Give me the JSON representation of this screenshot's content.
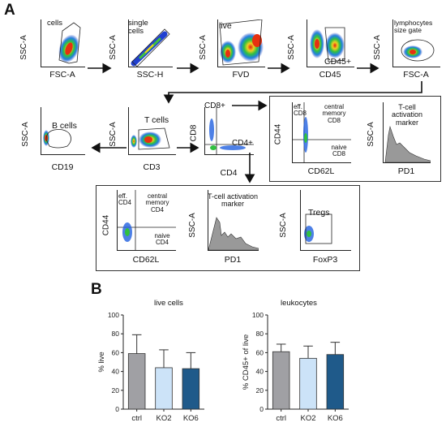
{
  "panel_a": {
    "letter": "A",
    "plots": {
      "cells": {
        "y": "SSC-A",
        "x": "FSC-A",
        "gate": "cells"
      },
      "single": {
        "y": "SSC-A",
        "x": "SSC-H",
        "gate": "single cells"
      },
      "live": {
        "y": "SSC-A",
        "x": "FVD",
        "gate": "live"
      },
      "cd45": {
        "y": "SSC-A",
        "x": "CD45",
        "gate": "CD45+"
      },
      "lymph": {
        "y": "SSC-A",
        "x": "FSC-A",
        "gate": "lymphocytes size gate"
      },
      "bcells": {
        "y": "SSC-A",
        "x": "CD19",
        "gate": "B cells"
      },
      "tcells": {
        "y": "SSC-A",
        "x": "CD3",
        "gate": "T cells"
      },
      "cd8cd4": {
        "y": "CD8",
        "x": "CD4",
        "gate_top": "CD8+",
        "gate_right": "CD4+"
      },
      "cd8mem": {
        "y": "CD44",
        "x": "CD62L",
        "eff": "eff. CD8",
        "central": "central memory CD8",
        "naive": "naive CD8"
      },
      "cd8pd1": {
        "y": "SSC-A",
        "x": "PD1",
        "title": "T-cell activation marker"
      },
      "cd4mem": {
        "y": "CD44",
        "x": "CD62L",
        "eff": "eff. CD4",
        "central": "central memory CD4",
        "naive": "naive CD4"
      },
      "cd4pd1": {
        "y": "SSC-A",
        "x": "PD1",
        "title": "T-cell activation marker"
      },
      "tregs": {
        "y": "SSC-A",
        "x": "FoxP3",
        "gate": "Tregs"
      }
    }
  },
  "panel_b": {
    "letter": "B",
    "colors": {
      "ctrl": "#a0a0a4",
      "KO2": "#cce3f8",
      "KO6": "#1f5a8a"
    },
    "chart_data": [
      {
        "type": "bar",
        "title": "live cells",
        "ylabel": "% live",
        "categories": [
          "ctrl",
          "KO2",
          "KO6"
        ],
        "values": [
          59,
          44,
          43
        ],
        "errors": [
          20,
          19,
          17
        ],
        "ylim": [
          0,
          100
        ],
        "yticks": [
          "0",
          "20",
          "40",
          "60",
          "80",
          "100"
        ]
      },
      {
        "type": "bar",
        "title": "leukocytes",
        "ylabel": "% CD45+ of live",
        "categories": [
          "ctrl",
          "KO2",
          "KO6"
        ],
        "values": [
          61,
          54,
          58
        ],
        "errors": [
          8,
          13,
          13
        ],
        "ylim": [
          0,
          100
        ],
        "yticks": [
          "0",
          "20",
          "40",
          "60",
          "80",
          "100"
        ]
      }
    ]
  }
}
